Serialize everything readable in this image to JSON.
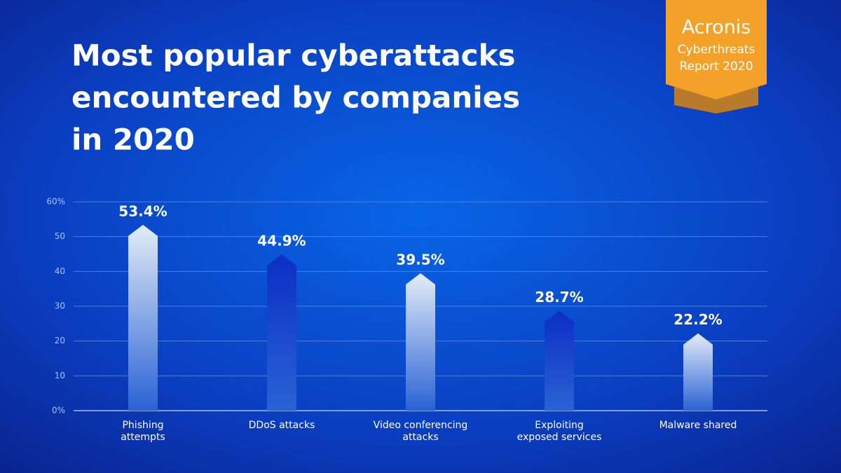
{
  "chart_data": {
    "type": "bar",
    "title": [
      "Most popular cyberattacks",
      "encountered by companies",
      "in 2020"
    ],
    "badge": {
      "brand": "Acronis",
      "lines": [
        "Cyberthreats",
        "Report 2020"
      ]
    },
    "categories": [
      [
        "Phishing",
        "attempts"
      ],
      [
        "DDoS attacks"
      ],
      [
        "Video conferencing",
        "attacks"
      ],
      [
        "Exploiting",
        "exposed services"
      ],
      [
        "Malware shared"
      ]
    ],
    "values": [
      53.4,
      44.9,
      39.5,
      28.7,
      22.2
    ],
    "value_labels": [
      "53.4%",
      "44.9%",
      "39.5%",
      "28.7%",
      "22.2%"
    ],
    "colors": [
      "#e4ecf8",
      "#0b2fc4",
      "#e4ecf8",
      "#0b2fc4",
      "#e4ecf8"
    ],
    "ylim": [
      0,
      60
    ],
    "yticks": [
      {
        "value": 0,
        "label": "0%"
      },
      10,
      20,
      30,
      40,
      50,
      {
        "value": 60,
        "label": "60%"
      }
    ],
    "grid": true
  }
}
